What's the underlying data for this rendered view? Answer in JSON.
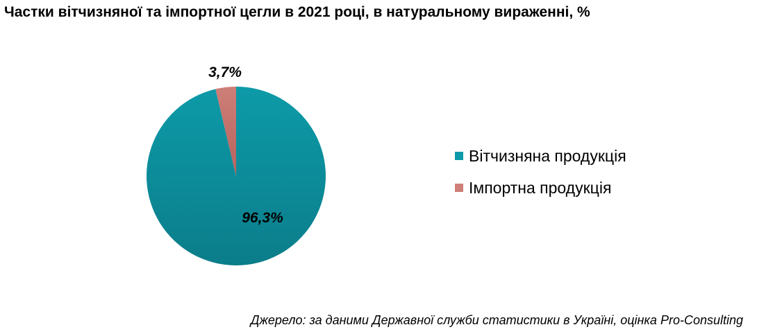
{
  "chart_data": {
    "type": "pie",
    "title": "Частки вітчизняної та імпортної цегли в 2021 році, в натуральному вираженні, %",
    "slices": [
      {
        "name": "Вітчизняна продукція",
        "value": 96.3,
        "label": "96,3%",
        "color": "#0d9aa8",
        "color_dark": "#0b7d8a"
      },
      {
        "name": "Імпортна продукція",
        "value": 3.7,
        "label": "3,7%",
        "color": "#cd7f78",
        "color_dark": "#b8625c"
      }
    ],
    "legend_position": "right",
    "start_angle_deg": 0,
    "direction": "clockwise"
  },
  "source": "Джерело: за даними Державної служби статистики в Україні, оцінка Pro-Consulting"
}
